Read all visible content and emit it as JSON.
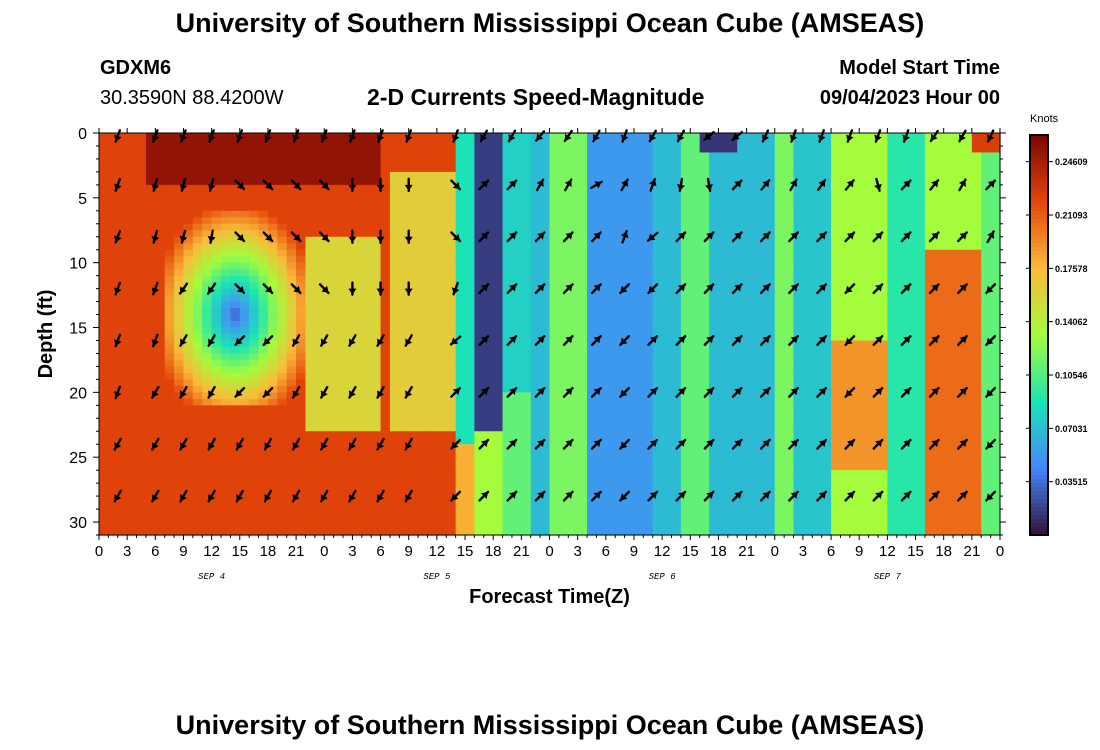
{
  "title": "University of Southern Mississippi Ocean Cube (AMSEAS)",
  "footer_title": "University of Southern Mississippi Ocean Cube (AMSEAS)",
  "station": {
    "name": "GDXM6",
    "coords": "30.3590N  88.4200W"
  },
  "subtitle": "2-D Currents Speed-Magnitude",
  "model_start": {
    "label": "Model Start Time",
    "value": "09/04/2023 Hour 00"
  },
  "colorbar": {
    "units": "Knots",
    "ticks": [
      "0.24609",
      "0.21093",
      "0.17578",
      "0.14062",
      "0.10546",
      "0.07031",
      "0.03515"
    ],
    "tick_values": [
      0.24609,
      0.21093,
      0.17578,
      0.14062,
      0.10546,
      0.07031,
      0.03515
    ],
    "min": 0.0,
    "max": 0.26367
  },
  "colors": {
    "dark_blue": "#30123b",
    "blue": "#4686fb",
    "cyan": "#1ae4b6",
    "green": "#a4fc3c",
    "yellow": "#faba39",
    "orange": "#e4460a",
    "dark_red": "#7a0403"
  },
  "chart_data": {
    "type": "heatmap",
    "title": "2-D Currents Speed-Magnitude",
    "xlabel": "Forecast Time(Z)",
    "ylabel": "Depth (ft)",
    "x_tick_labels": [
      "0",
      "3",
      "6",
      "9",
      "12",
      "15",
      "18",
      "21",
      "0",
      "3",
      "6",
      "9",
      "12",
      "15",
      "18",
      "21",
      "0",
      "3",
      "6",
      "9",
      "12",
      "15",
      "18",
      "21",
      "0",
      "3",
      "6",
      "9",
      "12",
      "15",
      "18",
      "21",
      "0"
    ],
    "x_range_hours": [
      0,
      96
    ],
    "date_labels": [
      "SEP 4",
      "SEP 5",
      "SEP 6",
      "SEP 7"
    ],
    "y_tick_labels": [
      "0",
      "5",
      "10",
      "15",
      "20",
      "25",
      "30"
    ],
    "y_range_ft": [
      0,
      31
    ],
    "grid": false,
    "arrow_depths_ft": [
      0,
      4,
      8,
      12,
      16,
      20,
      24,
      28
    ],
    "arrow_times_hours": [
      2,
      6,
      9,
      12,
      15,
      18,
      21,
      24,
      27,
      30,
      33,
      38,
      41,
      44,
      47,
      50,
      53,
      56,
      59,
      62,
      65,
      68,
      71,
      74,
      77,
      80,
      83,
      86,
      89,
      92,
      95
    ],
    "arrow_rows_deg": [
      [
        200,
        200,
        200,
        200,
        200,
        200,
        200,
        200,
        200,
        200,
        200,
        200,
        210,
        210,
        220,
        215,
        210,
        200,
        210,
        210,
        230,
        230,
        205,
        200,
        200,
        200,
        200,
        200,
        215,
        210,
        205
      ],
      [
        200,
        195,
        195,
        195,
        135,
        135,
        135,
        135,
        180,
        180,
        180,
        135,
        45,
        45,
        30,
        30,
        60,
        30,
        20,
        190,
        170,
        45,
        40,
        30,
        35,
        40,
        165,
        45,
        40,
        30,
        45
      ],
      [
        200,
        195,
        195,
        190,
        135,
        135,
        135,
        135,
        180,
        180,
        180,
        135,
        45,
        45,
        45,
        45,
        45,
        20,
        230,
        45,
        45,
        45,
        45,
        45,
        45,
        45,
        45,
        45,
        45,
        45,
        30
      ],
      [
        200,
        200,
        215,
        215,
        135,
        135,
        135,
        135,
        180,
        180,
        180,
        200,
        45,
        45,
        45,
        45,
        45,
        225,
        225,
        45,
        45,
        45,
        45,
        45,
        45,
        225,
        45,
        45,
        45,
        45,
        225
      ],
      [
        200,
        200,
        210,
        210,
        225,
        225,
        210,
        210,
        210,
        210,
        210,
        230,
        45,
        45,
        45,
        45,
        45,
        225,
        45,
        45,
        45,
        45,
        45,
        45,
        45,
        225,
        45,
        45,
        45,
        45,
        225
      ],
      [
        200,
        210,
        210,
        210,
        225,
        225,
        210,
        210,
        210,
        210,
        210,
        45,
        45,
        45,
        45,
        45,
        45,
        225,
        45,
        45,
        45,
        45,
        45,
        45,
        45,
        225,
        45,
        45,
        45,
        45,
        225
      ],
      [
        210,
        210,
        210,
        210,
        210,
        210,
        210,
        210,
        210,
        210,
        210,
        225,
        45,
        45,
        45,
        45,
        45,
        225,
        45,
        45,
        45,
        45,
        45,
        45,
        45,
        45,
        45,
        45,
        45,
        45,
        225
      ],
      [
        210,
        210,
        210,
        210,
        210,
        210,
        210,
        210,
        210,
        210,
        210,
        225,
        45,
        45,
        45,
        45,
        45,
        225,
        45,
        45,
        45,
        45,
        45,
        45,
        45,
        45,
        45,
        45,
        45,
        45,
        225
      ]
    ]
  }
}
